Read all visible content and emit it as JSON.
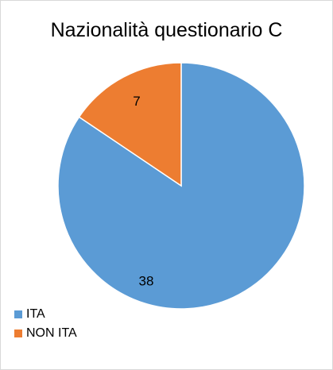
{
  "chart_data": {
    "type": "pie",
    "title": "Nazionalità questionario C",
    "categories": [
      "ITA",
      "NON ITA"
    ],
    "values": [
      38,
      7
    ],
    "colors": [
      "#5b9bd5",
      "#ed7d31"
    ],
    "data_labels": [
      "38",
      "7"
    ],
    "legend_position": "bottom-left",
    "start_angle_deg": 0,
    "direction": "clockwise"
  }
}
